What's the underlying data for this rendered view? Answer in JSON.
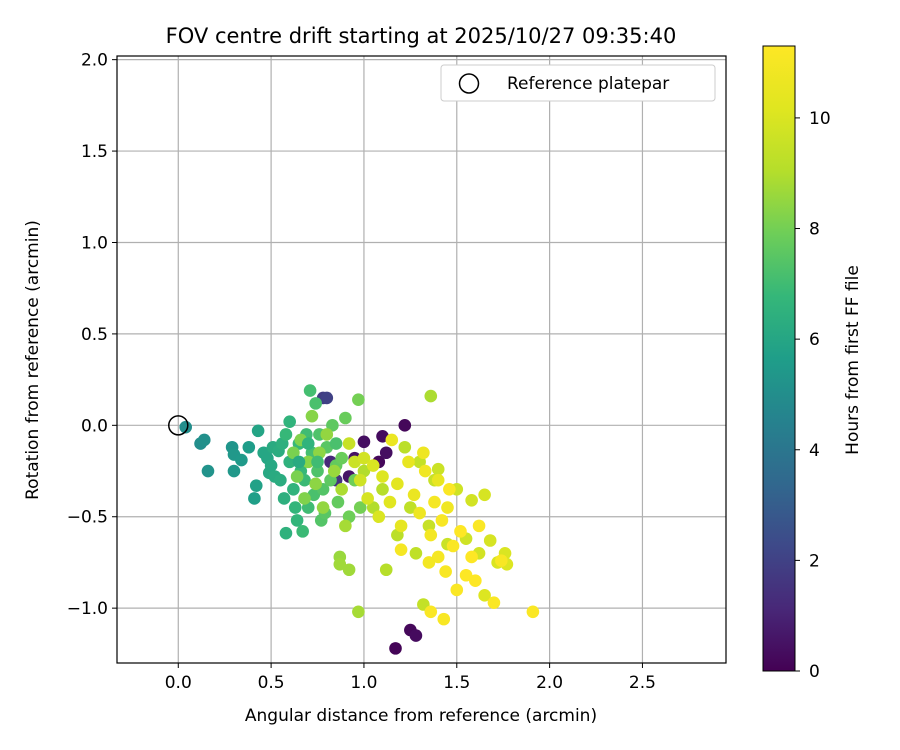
{
  "chart_data": {
    "type": "scatter",
    "title": "FOV centre drift starting at 2025/10/27 09:35:40",
    "xlabel": "Angular distance from reference (arcmin)",
    "ylabel": "Rotation from reference (arcmin)",
    "xlim": [
      -0.33,
      2.95
    ],
    "ylim": [
      -1.3,
      2.02
    ],
    "xticks": [
      0.0,
      0.5,
      1.0,
      1.5,
      2.0,
      2.5
    ],
    "xtick_labels": [
      "0.0",
      "0.5",
      "1.0",
      "1.5",
      "2.0",
      "2.5"
    ],
    "yticks": [
      -1.0,
      -0.5,
      0.0,
      0.5,
      1.0,
      1.5,
      2.0
    ],
    "ytick_labels": [
      "−1.0",
      "−0.5",
      "0.0",
      "0.5",
      "1.0",
      "1.5",
      "2.0"
    ],
    "grid": true,
    "legend": {
      "position": "top-right",
      "entries": [
        {
          "label": "Reference platepar",
          "marker": "open-circle"
        }
      ]
    },
    "reference_point": {
      "x": 0.0,
      "y": 0.0
    },
    "colorbar": {
      "label": "Hours from first FF file",
      "colormap": "viridis",
      "range": [
        0,
        11.3
      ],
      "ticks": [
        0,
        2,
        4,
        6,
        8,
        10
      ],
      "tick_labels": [
        "0",
        "2",
        "4",
        "6",
        "8",
        "10"
      ]
    },
    "points": [
      [
        1.17,
        -1.22,
        0.1
      ],
      [
        1.25,
        -1.12,
        0.2
      ],
      [
        1.28,
        -1.15,
        0.3
      ],
      [
        1.22,
        0.0,
        0.2
      ],
      [
        1.1,
        -0.06,
        0.3
      ],
      [
        1.08,
        -0.2,
        0.2
      ],
      [
        1.0,
        -0.09,
        0.4
      ],
      [
        0.95,
        -0.18,
        0.5
      ],
      [
        0.92,
        -0.28,
        0.6
      ],
      [
        1.12,
        -0.15,
        0.4
      ],
      [
        0.78,
        0.15,
        1.8
      ],
      [
        0.8,
        0.15,
        2.0
      ],
      [
        0.85,
        -0.3,
        1.5
      ],
      [
        0.82,
        -0.2,
        1.2
      ],
      [
        0.04,
        -0.01,
        5.0
      ],
      [
        0.12,
        -0.1,
        5.0
      ],
      [
        0.14,
        -0.08,
        5.1
      ],
      [
        0.16,
        -0.25,
        5.2
      ],
      [
        0.29,
        -0.12,
        5.3
      ],
      [
        0.3,
        -0.16,
        5.4
      ],
      [
        0.3,
        -0.25,
        5.4
      ],
      [
        0.34,
        -0.19,
        5.5
      ],
      [
        0.38,
        -0.12,
        5.6
      ],
      [
        0.41,
        -0.4,
        5.7
      ],
      [
        0.42,
        -0.33,
        5.8
      ],
      [
        0.43,
        -0.03,
        5.9
      ],
      [
        0.46,
        -0.15,
        6.0
      ],
      [
        0.48,
        -0.18,
        6.0
      ],
      [
        0.49,
        -0.26,
        6.1
      ],
      [
        0.5,
        -0.22,
        6.1
      ],
      [
        0.51,
        -0.12,
        6.2
      ],
      [
        0.52,
        -0.28,
        6.2
      ],
      [
        0.54,
        -0.14,
        6.3
      ],
      [
        0.55,
        -0.3,
        6.3
      ],
      [
        0.56,
        -0.1,
        6.4
      ],
      [
        0.57,
        -0.4,
        6.4
      ],
      [
        0.58,
        -0.59,
        6.5
      ],
      [
        0.6,
        -0.2,
        6.5
      ],
      [
        0.6,
        0.02,
        6.6
      ],
      [
        0.62,
        -0.35,
        6.6
      ],
      [
        0.63,
        -0.45,
        6.7
      ],
      [
        0.64,
        -0.52,
        6.7
      ],
      [
        0.65,
        -0.1,
        6.8
      ],
      [
        0.66,
        -0.25,
        6.8
      ],
      [
        0.67,
        -0.58,
        6.9
      ],
      [
        0.68,
        -0.3,
        6.9
      ],
      [
        0.69,
        -0.05,
        7.0
      ],
      [
        0.7,
        -0.45,
        7.0
      ],
      [
        0.71,
        0.19,
        7.1
      ],
      [
        0.72,
        -0.15,
        7.1
      ],
      [
        0.73,
        -0.38,
        7.2
      ],
      [
        0.74,
        0.12,
        7.2
      ],
      [
        0.75,
        -0.25,
        7.3
      ],
      [
        0.76,
        -0.05,
        7.3
      ],
      [
        0.77,
        -0.52,
        7.4
      ],
      [
        0.78,
        -0.35,
        7.4
      ],
      [
        0.79,
        -0.48,
        7.5
      ],
      [
        0.8,
        -0.12,
        7.5
      ],
      [
        0.82,
        -0.3,
        7.6
      ],
      [
        0.83,
        0.0,
        7.6
      ],
      [
        0.85,
        -0.22,
        7.7
      ],
      [
        0.86,
        -0.42,
        7.7
      ],
      [
        0.88,
        -0.18,
        7.8
      ],
      [
        0.9,
        0.04,
        7.8
      ],
      [
        0.92,
        -0.5,
        7.9
      ],
      [
        0.95,
        -0.3,
        7.9
      ],
      [
        0.97,
        0.14,
        8.0
      ],
      [
        0.98,
        -0.45,
        8.0
      ],
      [
        0.62,
        -0.15,
        8.1
      ],
      [
        0.64,
        -0.28,
        8.1
      ],
      [
        0.66,
        -0.08,
        8.2
      ],
      [
        0.68,
        -0.4,
        8.2
      ],
      [
        0.7,
        -0.2,
        8.3
      ],
      [
        0.72,
        0.05,
        8.3
      ],
      [
        0.74,
        -0.32,
        8.4
      ],
      [
        0.76,
        -0.15,
        8.4
      ],
      [
        0.78,
        -0.45,
        8.5
      ],
      [
        0.8,
        -0.05,
        8.5
      ],
      [
        0.84,
        -0.25,
        8.6
      ],
      [
        0.87,
        -0.72,
        8.6
      ],
      [
        0.87,
        -0.76,
        8.7
      ],
      [
        0.92,
        -0.79,
        8.7
      ],
      [
        0.97,
        -1.02,
        8.8
      ],
      [
        0.9,
        -0.55,
        8.8
      ],
      [
        0.88,
        -0.35,
        8.9
      ],
      [
        1.36,
        0.16,
        8.9
      ],
      [
        1.0,
        -0.25,
        9.0
      ],
      [
        1.05,
        -0.45,
        9.0
      ],
      [
        1.1,
        -0.35,
        9.1
      ],
      [
        1.12,
        -0.79,
        9.1
      ],
      [
        1.18,
        -0.6,
        9.2
      ],
      [
        1.22,
        -0.12,
        9.2
      ],
      [
        1.25,
        -0.45,
        9.3
      ],
      [
        1.28,
        -0.7,
        9.3
      ],
      [
        1.3,
        -0.2,
        9.4
      ],
      [
        1.32,
        -0.98,
        9.4
      ],
      [
        1.35,
        -0.55,
        9.5
      ],
      [
        1.38,
        -0.3,
        9.5
      ],
      [
        1.4,
        -0.24,
        9.6
      ],
      [
        1.45,
        -0.65,
        9.6
      ],
      [
        1.5,
        -0.35,
        9.7
      ],
      [
        1.55,
        -0.62,
        9.7
      ],
      [
        1.58,
        -0.41,
        9.8
      ],
      [
        1.62,
        -0.7,
        9.8
      ],
      [
        1.65,
        -0.38,
        9.9
      ],
      [
        1.68,
        -0.63,
        9.9
      ],
      [
        1.72,
        -0.75,
        10.0
      ],
      [
        1.76,
        -0.7,
        10.0
      ],
      [
        1.77,
        -0.76,
        10.1
      ],
      [
        1.65,
        -0.93,
        10.1
      ],
      [
        0.92,
        -0.1,
        9.5
      ],
      [
        0.95,
        -0.2,
        9.6
      ],
      [
        0.98,
        -0.3,
        9.7
      ],
      [
        1.0,
        -0.18,
        9.8
      ],
      [
        1.02,
        -0.4,
        9.9
      ],
      [
        1.05,
        -0.22,
        10.0
      ],
      [
        1.08,
        -0.5,
        10.0
      ],
      [
        1.1,
        -0.28,
        10.1
      ],
      [
        1.14,
        -0.42,
        10.2
      ],
      [
        1.18,
        -0.32,
        10.3
      ],
      [
        1.2,
        -0.55,
        10.4
      ],
      [
        1.24,
        -0.2,
        10.5
      ],
      [
        1.27,
        -0.38,
        10.6
      ],
      [
        1.3,
        -0.48,
        10.7
      ],
      [
        1.33,
        -0.25,
        10.8
      ],
      [
        1.36,
        -0.6,
        10.9
      ],
      [
        1.38,
        -0.42,
        11.0
      ],
      [
        1.4,
        -0.72,
        11.0
      ],
      [
        1.42,
        -0.52,
        11.1
      ],
      [
        1.44,
        -0.8,
        11.1
      ],
      [
        1.46,
        -0.35,
        11.2
      ],
      [
        1.48,
        -0.66,
        11.2
      ],
      [
        1.5,
        -0.9,
        11.2
      ],
      [
        1.52,
        -0.58,
        11.3
      ],
      [
        1.55,
        -0.82,
        11.3
      ],
      [
        1.58,
        -0.72,
        11.3
      ],
      [
        1.6,
        -0.85,
        11.3
      ],
      [
        1.62,
        -0.55,
        11.2
      ],
      [
        1.7,
        -0.97,
        11.2
      ],
      [
        1.74,
        -0.74,
        11.1
      ],
      [
        1.91,
        -1.02,
        11.2
      ],
      [
        1.36,
        -1.02,
        11.2
      ],
      [
        1.43,
        -1.06,
        11.1
      ],
      [
        1.2,
        -0.68,
        11.0
      ],
      [
        1.35,
        -0.75,
        10.9
      ],
      [
        1.45,
        -0.45,
        10.8
      ],
      [
        1.32,
        -0.15,
        10.7
      ],
      [
        1.15,
        -0.08,
        10.6
      ],
      [
        1.4,
        -0.3,
        10.5
      ],
      [
        0.65,
        -0.2,
        6.2
      ],
      [
        0.7,
        -0.1,
        6.6
      ],
      [
        0.58,
        -0.05,
        6.8
      ],
      [
        0.75,
        -0.2,
        7.0
      ],
      [
        0.85,
        -0.1,
        7.2
      ]
    ]
  }
}
